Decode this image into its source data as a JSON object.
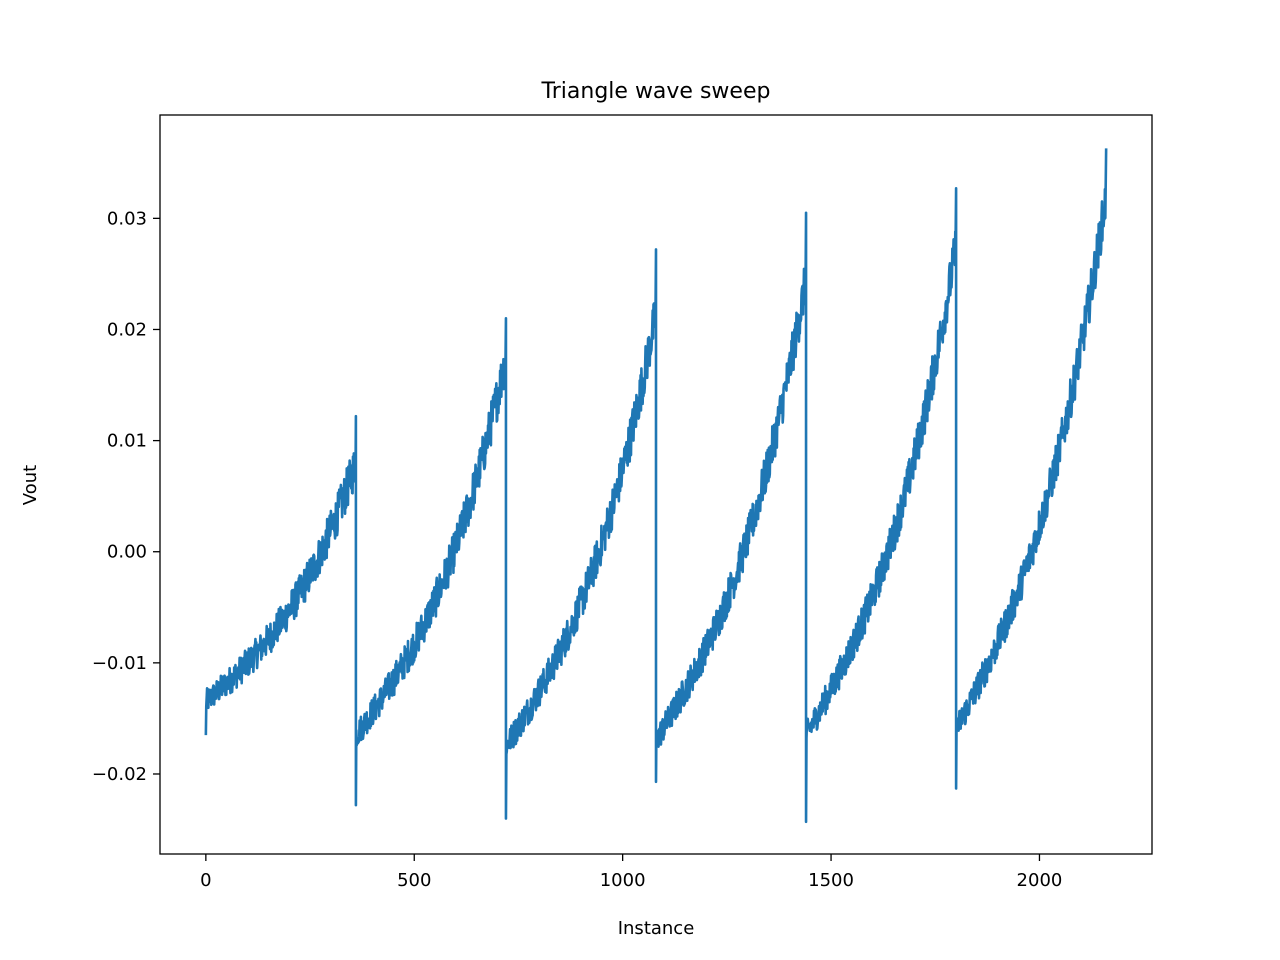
{
  "chart_data": {
    "type": "line",
    "title": "Triangle wave sweep",
    "xlabel": "Instance",
    "ylabel": "Vout",
    "xlim": [
      -110,
      2270
    ],
    "ylim": [
      -0.0272,
      0.0393
    ],
    "xticks": [
      0,
      500,
      1000,
      1500,
      2000
    ],
    "xtick_labels": [
      "0",
      "500",
      "1000",
      "1500",
      "2000"
    ],
    "yticks": [
      -0.02,
      -0.01,
      0.0,
      0.01,
      0.02,
      0.03
    ],
    "ytick_labels": [
      "−0.02",
      "−0.01",
      "0.00",
      "0.01",
      "0.02",
      "0.03"
    ],
    "grid": false,
    "series": [
      {
        "color": "#1f77b4",
        "segments": [
          {
            "x_start": 0,
            "x_end": 360,
            "y_start": -0.0135,
            "y_end": 0.008,
            "noise": 0.0028,
            "y_min_spike": -0.0165,
            "y_max_spike": 0.0122
          },
          {
            "x_start": 360,
            "x_end": 720,
            "y_start": -0.0165,
            "y_end": 0.0175,
            "noise": 0.003,
            "y_min_spike": -0.0228,
            "y_max_spike": 0.021
          },
          {
            "x_start": 720,
            "x_end": 1080,
            "y_start": -0.0175,
            "y_end": 0.0215,
            "noise": 0.003,
            "y_min_spike": -0.024,
            "y_max_spike": 0.0272
          },
          {
            "x_start": 1080,
            "x_end": 1440,
            "y_start": -0.017,
            "y_end": 0.0245,
            "noise": 0.003,
            "y_min_spike": -0.0207,
            "y_max_spike": 0.0305
          },
          {
            "x_start": 1440,
            "x_end": 1800,
            "y_start": -0.0165,
            "y_end": 0.0275,
            "noise": 0.003,
            "y_min_spike": -0.0243,
            "y_max_spike": 0.0327
          },
          {
            "x_start": 1800,
            "x_end": 2160,
            "y_start": -0.016,
            "y_end": 0.032,
            "noise": 0.003,
            "y_min_spike": -0.0213,
            "y_max_spike": 0.0363
          }
        ]
      }
    ]
  }
}
